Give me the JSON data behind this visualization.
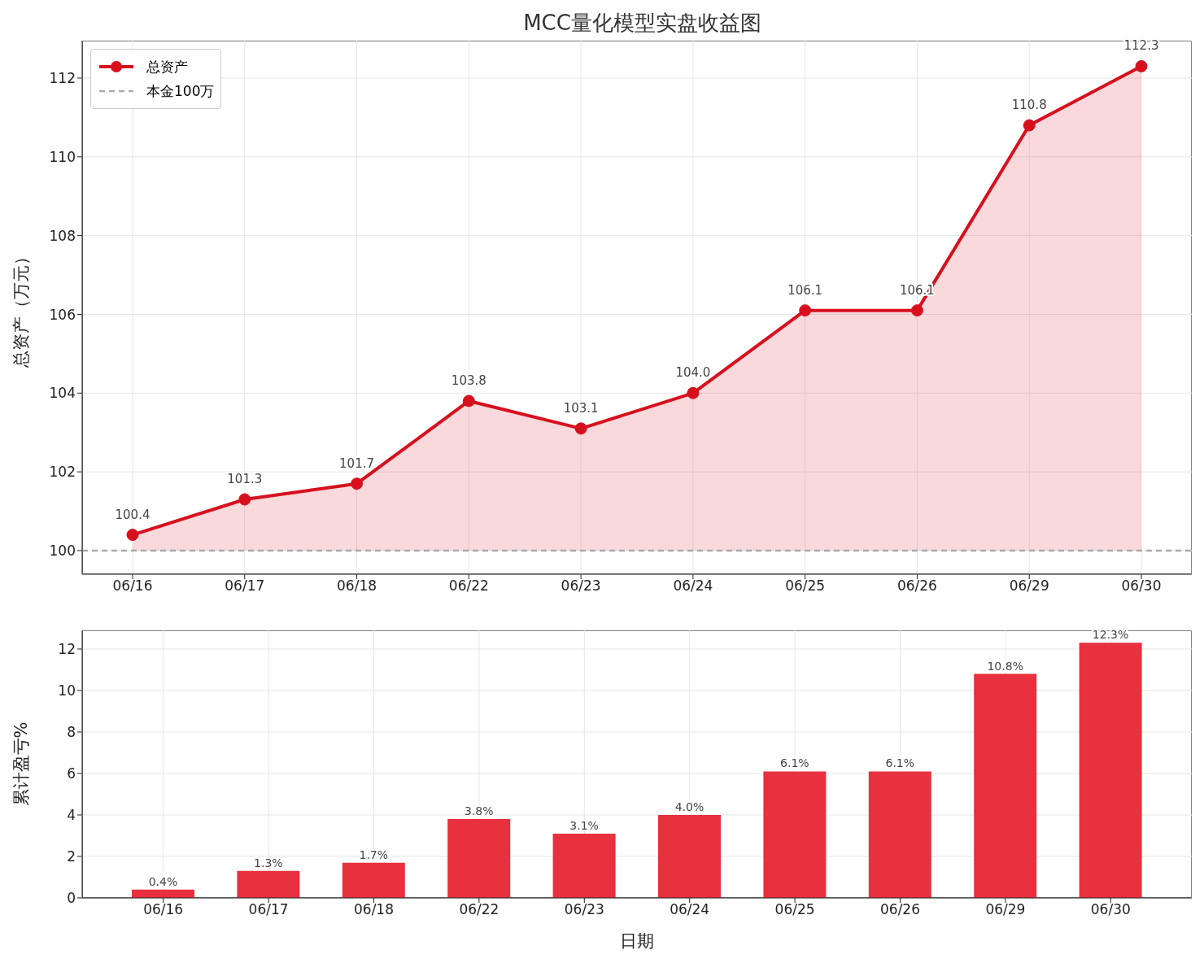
{
  "chart_data": [
    {
      "type": "area",
      "title": "MCC量化模型实盘收益图",
      "ylabel": "总资产（万元）",
      "categories": [
        "06/16",
        "06/17",
        "06/18",
        "06/22",
        "06/23",
        "06/24",
        "06/25",
        "06/26",
        "06/29",
        "06/30"
      ],
      "series": [
        {
          "name": "总资产",
          "color": "#d7101e",
          "values": [
            100.4,
            101.3,
            101.7,
            103.8,
            103.1,
            104.0,
            106.1,
            106.1,
            110.8,
            112.3
          ],
          "value_labels": [
            "100.4",
            "101.3",
            "101.7",
            "103.8",
            "103.1",
            "104.0",
            "106.1",
            "106.1",
            "110.8",
            "112.3"
          ]
        }
      ],
      "ref_lines": [
        {
          "axis": "y",
          "value": 100,
          "label": "本金100万",
          "color": "#aaaaaa",
          "line_style": "dashed"
        }
      ],
      "ylim": [
        99.4,
        112.95
      ],
      "yticks": [
        100,
        102,
        104,
        106,
        108,
        110,
        112
      ],
      "marker": "circle",
      "legend": "top left",
      "grid": true
    },
    {
      "type": "bar",
      "ylabel": "累计盈亏%",
      "xlabel": "日期",
      "categories": [
        "06/16",
        "06/17",
        "06/18",
        "06/22",
        "06/23",
        "06/24",
        "06/25",
        "06/26",
        "06/29",
        "06/30"
      ],
      "values": [
        0.4,
        1.3,
        1.7,
        3.8,
        3.1,
        4.0,
        6.1,
        6.1,
        10.8,
        12.3
      ],
      "color": "#e8303f",
      "value_labels": [
        "0.4%",
        "1.3%",
        "1.7%",
        "3.8%",
        "3.1%",
        "4.0%",
        "6.1%",
        "6.1%",
        "10.8%",
        "12.3%"
      ],
      "ylim": [
        0,
        12.9
      ],
      "yticks": [
        0,
        2,
        4,
        6,
        8,
        10,
        12
      ],
      "grid": true
    }
  ]
}
